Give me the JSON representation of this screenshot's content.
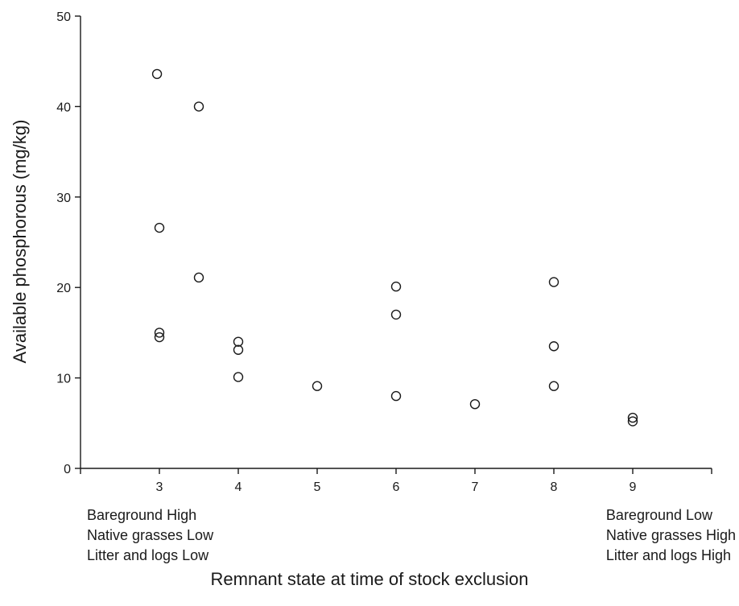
{
  "chart_data": {
    "type": "scatter",
    "title": "",
    "xlabel": "Remnant state at time of stock exclusion",
    "ylabel": "Available phosphorous (mg/kg)",
    "xlim": [
      2,
      10
    ],
    "ylim": [
      0,
      50
    ],
    "xticks": [
      3,
      4,
      5,
      6,
      7,
      8,
      9
    ],
    "yticks": [
      0,
      10,
      20,
      30,
      40,
      50
    ],
    "grid": false,
    "marker": "open-circle",
    "color": "#1a1a1a",
    "series": [
      {
        "x": [
          2.97,
          3.0,
          3.0,
          3.0,
          3.5,
          3.5,
          4.0,
          4.0,
          4.0,
          5.0,
          6.0,
          6.0,
          6.0,
          7.0,
          8.0,
          8.0,
          8.0,
          9.0,
          9.0
        ],
        "y": [
          43.6,
          26.6,
          15.0,
          14.5,
          40.0,
          21.1,
          14.0,
          13.1,
          10.1,
          9.1,
          20.1,
          17.0,
          8.0,
          7.1,
          20.6,
          13.5,
          9.1,
          5.6,
          5.2
        ]
      }
    ],
    "annotations": {
      "left": [
        "Bareground High",
        "Native grasses Low",
        "Litter and logs Low"
      ],
      "right": [
        "Bareground Low",
        "Native grasses High",
        "Litter and logs High"
      ]
    }
  }
}
